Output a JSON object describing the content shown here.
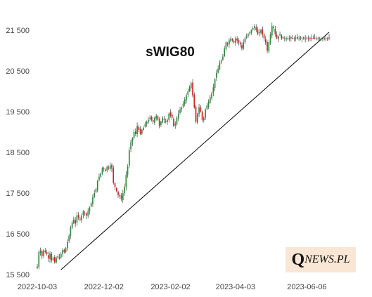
{
  "chart_data": {
    "type": "candlestick",
    "title": "sWIG80",
    "xlabel": "",
    "ylabel": "",
    "ylim": [
      15500,
      21800
    ],
    "grid": false,
    "y_ticks": [
      15500,
      16500,
      17500,
      18500,
      19500,
      20500,
      21500
    ],
    "y_tick_labels": [
      "15 500",
      "16 500",
      "17 500",
      "18 500",
      "19 500",
      "20 500",
      "21 500"
    ],
    "x_tick_labels": [
      "2022-10-03",
      "2022-12-02",
      "2023-02-02",
      "2023-04-03",
      "2023-06-06"
    ],
    "x_tick_index": [
      0,
      42,
      84,
      125,
      170
    ],
    "colors": {
      "up": "#2e8b3a",
      "down": "#d32020",
      "trendline": "#000000"
    },
    "closes": [
      15700,
      16050,
      16080,
      15950,
      16100,
      16050,
      16000,
      15900,
      16020,
      15850,
      15900,
      15800,
      15900,
      15950,
      15900,
      16000,
      16100,
      16050,
      16150,
      16300,
      16450,
      16650,
      16780,
      16850,
      16750,
      16950,
      16900,
      16850,
      16950,
      17050,
      17000,
      16950,
      17050,
      17150,
      17250,
      17400,
      17500,
      17600,
      17800,
      17900,
      17980,
      18120,
      18100,
      18050,
      18150,
      18120,
      18180,
      18100,
      17750,
      17650,
      17550,
      17450,
      17420,
      17350,
      17500,
      17650,
      17950,
      18150,
      18550,
      18750,
      18850,
      19000,
      18950,
      19150,
      19050,
      18950,
      19050,
      19100,
      19200,
      19250,
      19300,
      19350,
      19300,
      19250,
      19350,
      19400,
      19300,
      19150,
      19250,
      19350,
      19300,
      19250,
      19300,
      19450,
      19400,
      19350,
      19150,
      19200,
      19350,
      19450,
      19550,
      19600,
      19700,
      19800,
      19900,
      20000,
      20100,
      20200,
      19900,
      19600,
      19250,
      19450,
      19600,
      19500,
      19300,
      19350,
      19550,
      19650,
      19750,
      19850,
      19950,
      20100,
      20300,
      20450,
      20550,
      20700,
      20750,
      20850,
      21050,
      21200,
      21150,
      21250,
      21300,
      21250,
      21200,
      21300,
      21250,
      21200,
      21150,
      21050,
      21200,
      21300,
      21350,
      21400,
      21450,
      21500,
      21550,
      21600,
      21500,
      21400,
      21450,
      21500,
      21400,
      21300,
      21200,
      21000,
      21200,
      21400,
      21600,
      21550,
      21400,
      21300,
      21350,
      21400,
      21300
    ],
    "trendline": {
      "start": {
        "index": 15,
        "value": 15620
      },
      "end": {
        "index": 184,
        "value": 21450
      }
    }
  },
  "watermark": {
    "q": "Q",
    "rest": "NEWS.PL"
  }
}
